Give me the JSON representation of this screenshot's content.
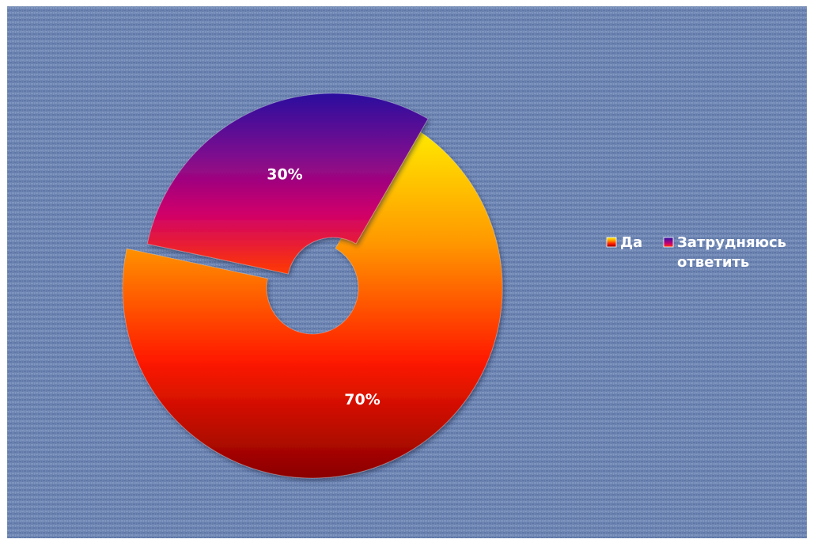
{
  "chart_data": {
    "type": "pie",
    "variant": "exploded doughnut",
    "categories": [
      "Да",
      "Затрудняюсь ответить"
    ],
    "values": [
      70,
      30
    ],
    "data_labels": [
      "70%",
      "30%"
    ],
    "legend": {
      "position": "right",
      "entries": [
        {
          "lines": [
            "Да"
          ]
        },
        {
          "lines": [
            "Затрудняюсь",
            "ответить"
          ]
        }
      ]
    },
    "colors": {
      "background": "#6f86b3",
      "slice_0_gradient": [
        "#ffee00",
        "#ff9900",
        "#ff1a00",
        "#8a0000"
      ],
      "slice_1_gradient": [
        "#2a0f9e",
        "#7a0a8f",
        "#d0006a",
        "#ff3a00"
      ]
    }
  }
}
